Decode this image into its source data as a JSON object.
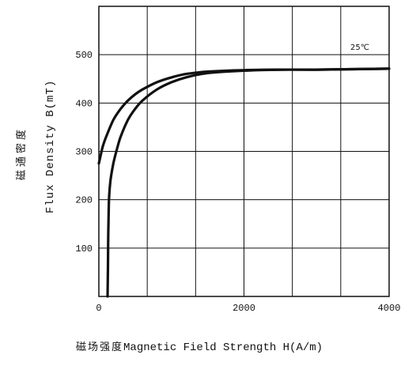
{
  "chart_data": {
    "type": "line",
    "xlabel_cn": "磁场强度",
    "xlabel_en": "Magnetic Field Strength H(A/m)",
    "ylabel_cn": "磁通密度",
    "ylabel_en": "Flux Density  B(mT)",
    "annotation": "25℃",
    "xlim": [
      0,
      4000
    ],
    "ylim": [
      0,
      600
    ],
    "x_ticks": [
      0,
      2000,
      4000
    ],
    "x_tick_labels": [
      "0",
      "2000",
      "4000"
    ],
    "y_ticks": [
      100,
      200,
      300,
      400,
      500
    ],
    "y_tick_labels": [
      "100",
      "200",
      "300",
      "400",
      "500"
    ],
    "x_grid": [
      0,
      666.7,
      1333.3,
      2000,
      2666.7,
      3333.3,
      4000
    ],
    "y_grid": [
      0,
      100,
      200,
      300,
      400,
      500,
      600
    ],
    "grid": true,
    "series": [
      {
        "x": [
          0,
          50,
          100,
          200,
          300,
          400,
          500,
          600,
          800,
          1000,
          1200,
          1500,
          2000,
          2500,
          3000,
          3500,
          4000
        ],
        "y": [
          275,
          308,
          330,
          365,
          388,
          405,
          418,
          428,
          443,
          453,
          460,
          465,
          468,
          469,
          469,
          470,
          471
        ]
      },
      {
        "x": [
          120,
          125,
          130,
          140,
          160,
          200,
          250,
          300,
          400,
          500,
          600,
          800,
          1000,
          1200,
          1500,
          2000,
          2500,
          3000,
          3500,
          4000
        ],
        "y": [
          0,
          60,
          130,
          200,
          240,
          275,
          305,
          330,
          365,
          388,
          405,
          428,
          443,
          453,
          462,
          467,
          469,
          469,
          470,
          471
        ]
      }
    ]
  }
}
